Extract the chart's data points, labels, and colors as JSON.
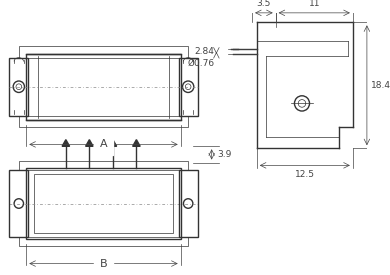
{
  "bg_color": "#ffffff",
  "line_color": "#333333",
  "dim_color": "#444444",
  "centerline_color": "#888888",
  "fig_width": 3.9,
  "fig_height": 2.75,
  "dpi": 100,
  "dims": {
    "top_3_5": "3.5",
    "top_11": "11",
    "right_18_4": "18.4",
    "left_2_84": "2.84",
    "circle_0_76": "Ø0.76",
    "bottom_12_5": "12.5",
    "dim_A": "A",
    "dim_B": "B",
    "dim_3_9": "3.9"
  }
}
